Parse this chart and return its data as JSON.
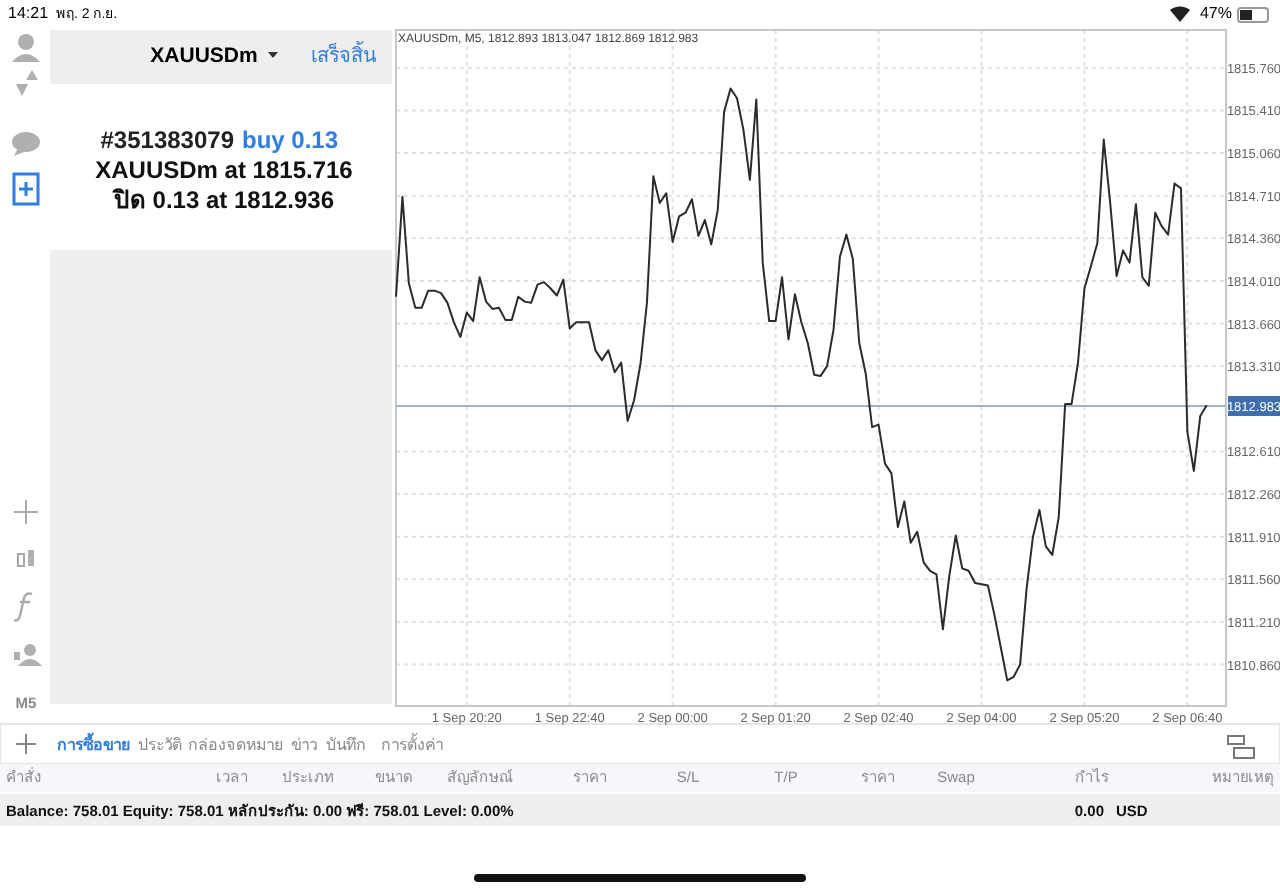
{
  "chart_data": {
    "type": "line",
    "title": "XAUUSDm, M5, 1812.893 1813.047 1812.869 1812.983",
    "categories": [
      null,
      null,
      null,
      null,
      null,
      null,
      null,
      null,
      null,
      null,
      null,
      "1 Sep 20:20",
      null,
      null,
      null,
      null,
      null,
      null,
      null,
      null,
      null,
      null,
      null,
      null,
      null,
      null,
      null,
      "1 Sep 22:40",
      null,
      null,
      null,
      null,
      null,
      null,
      null,
      null,
      null,
      null,
      null,
      null,
      null,
      null,
      null,
      "2 Sep 00:00",
      null,
      null,
      null,
      null,
      null,
      null,
      null,
      null,
      null,
      null,
      null,
      null,
      null,
      null,
      null,
      "2 Sep 01:20",
      null,
      null,
      null,
      null,
      null,
      null,
      null,
      null,
      null,
      null,
      null,
      null,
      null,
      null,
      null,
      "2 Sep 02:40",
      null,
      null,
      null,
      null,
      null,
      null,
      null,
      null,
      null,
      null,
      null,
      null,
      null,
      null,
      null,
      "2 Sep 04:00",
      null,
      null,
      null,
      null,
      null,
      null,
      null,
      null,
      null,
      null,
      null,
      null,
      null,
      null,
      null,
      "2 Sep 05:20",
      null,
      null,
      null,
      null,
      null,
      null,
      null,
      null,
      null,
      null,
      null,
      null,
      null,
      null,
      null,
      "2 Sep 06:40",
      null,
      null,
      null
    ],
    "series": [
      {
        "color": "#2b2b2b",
        "values": [
          1813.88,
          1814.7,
          1813.99,
          1813.79,
          1813.79,
          1813.93,
          1813.93,
          1813.91,
          1813.83,
          1813.67,
          1813.55,
          1813.75,
          1813.68,
          1814.04,
          1813.84,
          1813.78,
          1813.79,
          1813.69,
          1813.69,
          1813.88,
          1813.84,
          1813.83,
          1813.98,
          1814.0,
          1813.95,
          1813.89,
          1814.02,
          1813.62,
          1813.67,
          1813.67,
          1813.67,
          1813.44,
          1813.36,
          1813.44,
          1813.26,
          1813.34,
          1812.86,
          1813.03,
          1813.33,
          1813.83,
          1814.87,
          1814.65,
          1814.73,
          1814.33,
          1814.54,
          1814.57,
          1814.68,
          1814.38,
          1814.51,
          1814.31,
          1814.59,
          1815.4,
          1815.59,
          1815.51,
          1815.25,
          1814.84,
          1815.5,
          1814.16,
          1813.68,
          1813.68,
          1814.04,
          1813.53,
          1813.9,
          1813.67,
          1813.5,
          1813.24,
          1813.23,
          1813.31,
          1813.61,
          1814.21,
          1814.39,
          1814.19,
          1813.5,
          1813.25,
          1812.81,
          1812.83,
          1812.51,
          1812.43,
          1811.99,
          1812.2,
          1811.86,
          1811.95,
          1811.7,
          1811.63,
          1811.6,
          1811.15,
          1811.59,
          1811.92,
          1811.65,
          1811.63,
          1811.53,
          1811.52,
          1811.51,
          1811.27,
          1811.0,
          1810.73,
          1810.76,
          1810.86,
          1811.48,
          1811.91,
          1812.13,
          1811.83,
          1811.76,
          1812.07,
          1813.0,
          1813.0,
          1813.34,
          1813.95,
          1814.13,
          1814.32,
          1815.17,
          1814.65,
          1814.05,
          1814.26,
          1814.16,
          1814.64,
          1814.04,
          1813.97,
          1814.57,
          1814.46,
          1814.39,
          1814.81,
          1814.77,
          1812.77,
          1812.45,
          1812.9,
          1812.99
        ]
      }
    ],
    "ylim": [
      1810.52,
      1816.07
    ],
    "yticks": [
      {
        "value": 1815.76,
        "label": "1815.760"
      },
      {
        "value": 1815.41,
        "label": "1815.410"
      },
      {
        "value": 1815.06,
        "label": "1815.060"
      },
      {
        "value": 1814.71,
        "label": "1814.710"
      },
      {
        "value": 1814.36,
        "label": "1814.360"
      },
      {
        "value": 1814.01,
        "label": "1814.010"
      },
      {
        "value": 1813.66,
        "label": "1813.660"
      },
      {
        "value": 1813.31,
        "label": "1813.310"
      },
      {
        "value": 1812.61,
        "label": "1812.610"
      },
      {
        "value": 1812.26,
        "label": "1812.260"
      },
      {
        "value": 1811.91,
        "label": "1811.910"
      },
      {
        "value": 1811.56,
        "label": "1811.560"
      },
      {
        "value": 1811.21,
        "label": "1811.210"
      },
      {
        "value": 1810.86,
        "label": "1810.860"
      }
    ],
    "grid": true,
    "ref_lines": [
      {
        "axis": "y",
        "value": 1812.983,
        "label": "1812.983",
        "color": "#9fb2c8"
      }
    ],
    "annotations": [
      "14:21",
      "พฤ. 2 ก.ย.",
      "47%",
      "XAUUSDm",
      "เสร็จสิ้น",
      "#351383079",
      "buy 0.13",
      "XAUUSDm at 1815.716",
      "ปิด 0.13 at 1812.936",
      "M5",
      "การซื้อขาย",
      "ประวัติ",
      "กล่องจดหมาย",
      "ข่าว",
      "บันทึก",
      "การตั้งค่า",
      "คำสั่ง",
      "เวลา",
      "ประเภท",
      "ขนาด",
      "สัญลักษณ์",
      "ราคา",
      "S/L",
      "T/P",
      "ราคา",
      "Swap",
      "กำไร",
      "หมายเหตุ",
      "Balance: 758.01 Equity: 758.01 หลักประกัน: 0.00 ฟรี: 758.01 Level: 0.00%",
      "0.00",
      "USD"
    ]
  }
}
